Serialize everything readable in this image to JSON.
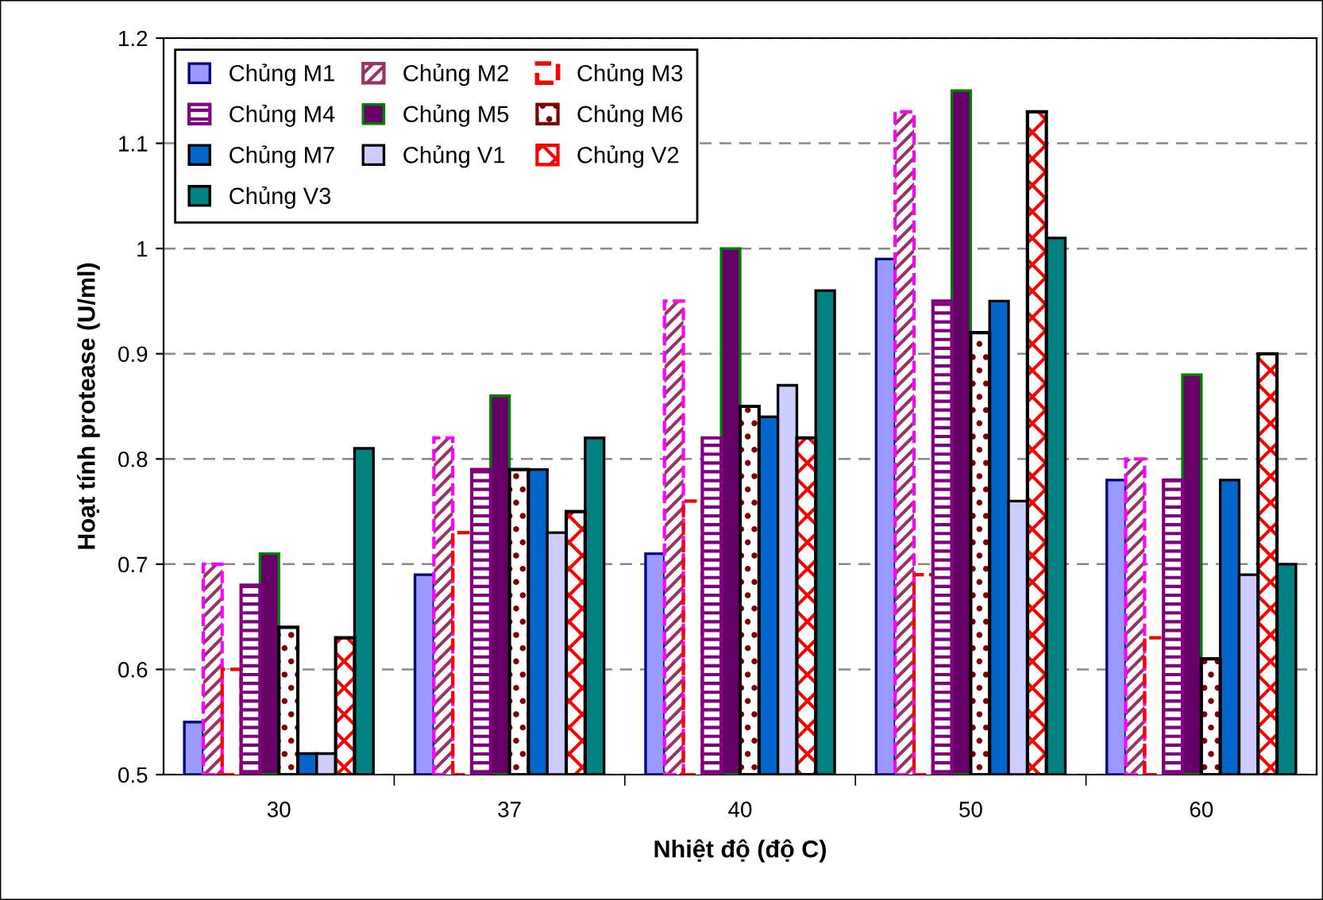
{
  "chart_data": {
    "type": "bar",
    "xlabel": "Nhiệt độ (độ C)",
    "ylabel": "Hoạt tính protease (U/ml)",
    "categories": [
      "30",
      "37",
      "40",
      "50",
      "60"
    ],
    "series": [
      {
        "name": "Chủng M1",
        "color": "#9999ff",
        "values": [
          0.55,
          0.69,
          0.71,
          0.99,
          0.78
        ]
      },
      {
        "name": "Chủng M2",
        "color": "#993366",
        "values": [
          0.7,
          0.82,
          0.95,
          1.13,
          0.8
        ]
      },
      {
        "name": "Chủng M3",
        "color": "#ff0000",
        "values": [
          0.6,
          0.73,
          0.76,
          0.69,
          0.63
        ]
      },
      {
        "name": "Chủng M4",
        "color": "#800080",
        "values": [
          0.68,
          0.79,
          0.82,
          0.95,
          0.78
        ]
      },
      {
        "name": "Chủng M5",
        "color": "#660066",
        "values": [
          0.71,
          0.86,
          1.0,
          1.15,
          0.88
        ]
      },
      {
        "name": "Chủng M6",
        "color": "#800000",
        "values": [
          0.64,
          0.79,
          0.85,
          0.92,
          0.61
        ]
      },
      {
        "name": "Chủng M7",
        "color": "#0066cc",
        "values": [
          0.52,
          0.79,
          0.84,
          0.95,
          0.78
        ]
      },
      {
        "name": "Chủng V1",
        "color": "#ccccff",
        "values": [
          0.52,
          0.73,
          0.87,
          0.76,
          0.69
        ]
      },
      {
        "name": "Chủng V2",
        "color": "#ff0000",
        "values": [
          0.63,
          0.75,
          0.82,
          1.13,
          0.9
        ]
      },
      {
        "name": "Chủng V3",
        "color": "#008080",
        "values": [
          0.81,
          0.82,
          0.96,
          1.01,
          0.7
        ]
      }
    ],
    "ylim": [
      0.5,
      1.2
    ],
    "yticks": [
      0.5,
      0.6,
      0.7,
      0.8,
      0.9,
      1,
      1.1,
      1.2
    ],
    "grid": "y",
    "legend": "top left"
  }
}
